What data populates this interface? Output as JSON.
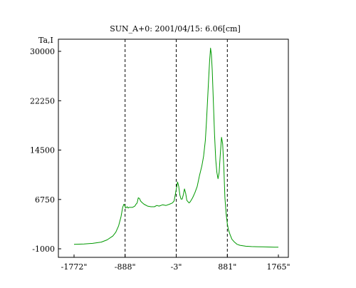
{
  "chart_data": {
    "type": "line",
    "title": "SUN_A+0: 2001/04/15: 6.06[cm]",
    "ylabel": "Ta,I",
    "xlabel": "",
    "xlim": [
      -1772,
      1765
    ],
    "ylim": [
      -1000,
      31500
    ],
    "x_ticks": [
      -1772,
      -888,
      -3,
      881,
      1765
    ],
    "x_tick_labels": [
      "-1772\"",
      "-888\"",
      "-3\"",
      "881\"",
      "1765\""
    ],
    "y_ticks": [
      -1000,
      6750,
      14500,
      22250,
      30000
    ],
    "y_tick_labels": [
      "-1000",
      "6750",
      "14500",
      "22250",
      "30000"
    ],
    "vlines": [
      -888,
      -3,
      881
    ],
    "grid": false,
    "legend": "none",
    "line_color": "#009900",
    "series": [
      {
        "x": [
          -1772,
          -1600,
          -1450,
          -1300,
          -1200,
          -1100,
          -1050,
          -1000,
          -960,
          -930,
          -910,
          -895,
          -880,
          -865,
          -850,
          -835,
          -820,
          -800,
          -760,
          -720,
          -700,
          -680,
          -660,
          -640,
          -620,
          -600,
          -560,
          -500,
          -440,
          -380,
          -340,
          -300,
          -240,
          -180,
          -120,
          -70,
          -40,
          -20,
          0,
          20,
          40,
          60,
          80,
          100,
          120,
          140,
          160,
          180,
          200,
          220,
          240,
          280,
          320,
          360,
          400,
          440,
          470,
          500,
          520,
          540,
          560,
          575,
          590,
          605,
          620,
          640,
          660,
          680,
          700,
          720,
          740,
          760,
          780,
          800,
          820,
          840,
          860,
          880,
          900,
          930,
          960,
          1000,
          1050,
          1100,
          1200,
          1300,
          1400,
          1500,
          1600,
          1700,
          1765
        ],
        "y": [
          -300,
          -250,
          -150,
          50,
          400,
          1000,
          1600,
          2600,
          4000,
          5500,
          6000,
          5800,
          5400,
          5500,
          5600,
          5400,
          5500,
          5500,
          5500,
          5700,
          6000,
          6200,
          7000,
          6900,
          6500,
          6300,
          6000,
          5700,
          5600,
          5600,
          5800,
          5700,
          5900,
          5800,
          6000,
          6200,
          6500,
          7500,
          8500,
          9500,
          8800,
          7400,
          6800,
          6800,
          7500,
          8400,
          7700,
          6600,
          6400,
          6200,
          6400,
          7000,
          7800,
          8800,
          10500,
          12000,
          13500,
          16000,
          19000,
          22500,
          26000,
          28500,
          30500,
          29500,
          27000,
          22000,
          17000,
          13000,
          11000,
          10000,
          11000,
          14000,
          16500,
          15500,
          12000,
          7000,
          4500,
          3000,
          2000,
          1200,
          500,
          100,
          -300,
          -450,
          -600,
          -650,
          -680,
          -700,
          -720,
          -740,
          -750
        ]
      }
    ]
  }
}
